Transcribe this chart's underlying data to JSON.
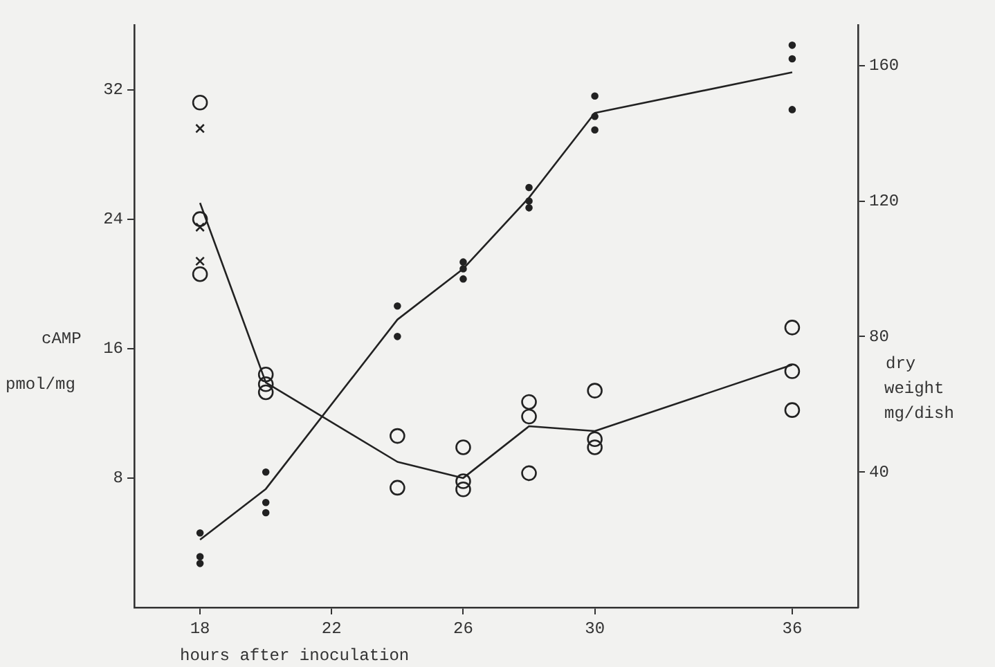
{
  "chart_data": {
    "type": "scatter",
    "xlabel": "hours after inoculation",
    "ylabel": "cAMP\npmol/mg",
    "y2label": "dry\nweight\nmg/dish",
    "xlim": [
      16,
      38
    ],
    "xticks": [
      18,
      22,
      26,
      30,
      36
    ],
    "ylim": [
      0,
      36
    ],
    "yticks": [
      8,
      16,
      24,
      32
    ],
    "y2lim": [
      0,
      172
    ],
    "y2ticks": [
      40,
      80,
      120,
      160
    ],
    "grid": false,
    "legend": false,
    "line_style": "solid",
    "series": [
      {
        "type": "scatter",
        "marker": "circle",
        "axis": "y",
        "color": "#222222",
        "x": [
          18,
          18,
          18,
          20,
          20,
          20,
          24,
          24,
          26,
          26,
          26,
          28,
          28,
          28,
          30,
          30,
          30,
          36,
          36,
          36
        ],
        "values": [
          31.2,
          24.0,
          20.6,
          14.4,
          13.8,
          13.3,
          10.6,
          7.4,
          9.9,
          7.8,
          7.3,
          12.7,
          11.8,
          8.3,
          13.4,
          10.4,
          9.9,
          17.3,
          14.6,
          12.2
        ]
      },
      {
        "type": "scatter",
        "marker": "cross",
        "axis": "y",
        "color": "#222222",
        "x": [
          18,
          18,
          18
        ],
        "values": [
          29.6,
          23.5,
          21.4
        ]
      },
      {
        "type": "line",
        "marker": "none",
        "axis": "y",
        "color": "#222222",
        "x": [
          18,
          20,
          24,
          26,
          28,
          30,
          36
        ],
        "values": [
          25.0,
          13.9,
          9.0,
          8.0,
          11.2,
          10.9,
          15.0
        ]
      },
      {
        "type": "scatter",
        "marker": "circle",
        "axis": "y2",
        "color": "#222222",
        "x": [
          18,
          18,
          18,
          20,
          20,
          20,
          24,
          24,
          26,
          26,
          26,
          28,
          28,
          28,
          30,
          30,
          30,
          36,
          36,
          36
        ],
        "values": [
          22,
          15,
          13,
          40,
          31,
          28,
          89,
          80,
          102,
          100,
          97,
          124,
          120,
          118,
          151,
          145,
          141,
          166,
          162,
          147
        ]
      },
      {
        "type": "line",
        "marker": "none",
        "axis": "y2",
        "color": "#222222",
        "x": [
          18,
          20,
          24,
          26,
          28,
          30,
          36
        ],
        "values": [
          20,
          35,
          85,
          100,
          121,
          146,
          158
        ]
      }
    ]
  }
}
